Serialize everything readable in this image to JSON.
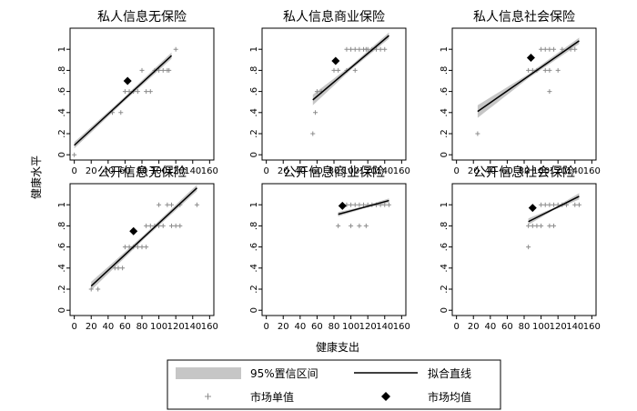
{
  "chart_data": {
    "type": "scatter",
    "ylabel": "健康水平",
    "xlabel": "健康支出",
    "x_ticks": [
      0,
      20,
      40,
      60,
      80,
      100,
      120,
      140,
      160
    ],
    "x_tick_labels": [
      "0",
      "20",
      "40",
      "60",
      "80",
      "100",
      "120",
      "140",
      "160"
    ],
    "y_ticks": [
      0,
      0.2,
      0.4,
      0.6,
      0.8,
      1
    ],
    "y_tick_labels": [
      "0",
      ".2",
      ".4",
      ".6",
      ".8",
      "1"
    ],
    "xlim": [
      -5,
      165
    ],
    "ylim": [
      -0.05,
      1.2
    ],
    "legend": {
      "placement": "bottom",
      "ci_label": "95%置信区间",
      "fit_label": "拟合直线",
      "market_label": "市场单值",
      "mean_label": "市场均值"
    },
    "colors": {
      "ci": "#c6c6c6",
      "points": "#8c8c8c",
      "line": "#000000",
      "mean": "#000000"
    },
    "panels": [
      {
        "title": "私人信息无保险",
        "fit": {
          "x_range": [
            0,
            115
          ],
          "y_start": 0.09,
          "y_end": 0.94,
          "ci_width": [
            0.03,
            0.02,
            0.03
          ]
        },
        "mean": [
          63,
          0.7
        ],
        "points": [
          [
            0,
            0
          ],
          [
            45,
            0.4
          ],
          [
            55,
            0.4
          ],
          [
            60,
            0.6
          ],
          [
            65,
            0.6
          ],
          [
            70,
            0.6
          ],
          [
            75,
            0.6
          ],
          [
            80,
            0.8
          ],
          [
            85,
            0.6
          ],
          [
            90,
            0.6
          ],
          [
            95,
            0.8
          ],
          [
            100,
            0.8
          ],
          [
            105,
            0.8
          ],
          [
            110,
            0.8
          ],
          [
            112,
            0.8
          ],
          [
            120,
            1.0
          ]
        ]
      },
      {
        "title": "私人信息商业保险",
        "fit": {
          "x_range": [
            55,
            145
          ],
          "y_start": 0.52,
          "y_end": 1.13,
          "ci_width": [
            0.05,
            0.02,
            0.03
          ]
        },
        "mean": [
          82,
          0.89
        ],
        "points": [
          [
            55,
            0.2
          ],
          [
            58,
            0.4
          ],
          [
            60,
            0.6
          ],
          [
            65,
            0.6
          ],
          [
            80,
            0.8
          ],
          [
            85,
            0.8
          ],
          [
            95,
            0.8
          ],
          [
            95,
            1.0
          ],
          [
            100,
            1.0
          ],
          [
            105,
            0.8
          ],
          [
            105,
            1.0
          ],
          [
            110,
            1.0
          ],
          [
            115,
            1.0
          ],
          [
            118,
            1.0
          ],
          [
            120,
            1.0
          ],
          [
            125,
            1.0
          ],
          [
            130,
            1.0
          ],
          [
            135,
            1.0
          ],
          [
            140,
            1.0
          ]
        ]
      },
      {
        "title": "私人信息社会保险",
        "fit": {
          "x_range": [
            25,
            145
          ],
          "y_start": 0.41,
          "y_end": 1.08,
          "ci_width": [
            0.06,
            0.02,
            0.03
          ]
        },
        "mean": [
          88,
          0.92
        ],
        "points": [
          [
            25,
            0.2
          ],
          [
            85,
            0.8
          ],
          [
            90,
            0.8
          ],
          [
            95,
            0.8
          ],
          [
            100,
            1.0
          ],
          [
            105,
            0.8
          ],
          [
            105,
            1.0
          ],
          [
            110,
            0.8
          ],
          [
            110,
            0.6
          ],
          [
            110,
            1.0
          ],
          [
            115,
            1.0
          ],
          [
            120,
            0.8
          ],
          [
            125,
            1.0
          ],
          [
            135,
            1.0
          ],
          [
            140,
            1.0
          ]
        ]
      },
      {
        "title": "公开信息无保险",
        "fit": {
          "x_range": [
            20,
            145
          ],
          "y_start": 0.23,
          "y_end": 1.16,
          "ci_width": [
            0.04,
            0.02,
            0.03
          ]
        },
        "mean": [
          70,
          0.75
        ],
        "points": [
          [
            20,
            0.2
          ],
          [
            28,
            0.2
          ],
          [
            48,
            0.4
          ],
          [
            52,
            0.4
          ],
          [
            57,
            0.4
          ],
          [
            60,
            0.6
          ],
          [
            65,
            0.6
          ],
          [
            70,
            0.6
          ],
          [
            75,
            0.6
          ],
          [
            80,
            0.6
          ],
          [
            85,
            0.8
          ],
          [
            85,
            0.6
          ],
          [
            90,
            0.8
          ],
          [
            95,
            0.8
          ],
          [
            100,
            0.8
          ],
          [
            100,
            1.0
          ],
          [
            105,
            0.8
          ],
          [
            110,
            1.0
          ],
          [
            115,
            0.8
          ],
          [
            120,
            0.8
          ],
          [
            115,
            1.0
          ],
          [
            125,
            0.8
          ],
          [
            125,
            1.0
          ],
          [
            145,
            1.0
          ]
        ]
      },
      {
        "title": "公开信息商业保险",
        "fit": {
          "x_range": [
            85,
            145
          ],
          "y_start": 0.91,
          "y_end": 1.04,
          "ci_width": [
            0.02,
            0.01,
            0.02
          ]
        },
        "mean": [
          90,
          0.99
        ],
        "points": [
          [
            85,
            0.8
          ],
          [
            90,
            1.0
          ],
          [
            95,
            1.0
          ],
          [
            100,
            0.8
          ],
          [
            100,
            1.0
          ],
          [
            105,
            1.0
          ],
          [
            110,
            1.0
          ],
          [
            110,
            0.8
          ],
          [
            115,
            1.0
          ],
          [
            118,
            0.8
          ],
          [
            120,
            1.0
          ],
          [
            125,
            1.0
          ],
          [
            130,
            1.0
          ],
          [
            135,
            1.0
          ],
          [
            140,
            1.0
          ],
          [
            145,
            1.0
          ]
        ]
      },
      {
        "title": "公开信息社会保险",
        "fit": {
          "x_range": [
            85,
            145
          ],
          "y_start": 0.84,
          "y_end": 1.08,
          "ci_width": [
            0.03,
            0.01,
            0.03
          ]
        },
        "mean": [
          90,
          0.97
        ],
        "points": [
          [
            85,
            0.6
          ],
          [
            85,
            0.8
          ],
          [
            90,
            0.8
          ],
          [
            95,
            0.8
          ],
          [
            100,
            0.8
          ],
          [
            100,
            1.0
          ],
          [
            105,
            1.0
          ],
          [
            110,
            0.8
          ],
          [
            110,
            1.0
          ],
          [
            115,
            0.8
          ],
          [
            115,
            1.0
          ],
          [
            120,
            1.0
          ],
          [
            125,
            1.0
          ],
          [
            130,
            1.0
          ],
          [
            140,
            1.0
          ],
          [
            145,
            1.0
          ]
        ]
      }
    ]
  }
}
